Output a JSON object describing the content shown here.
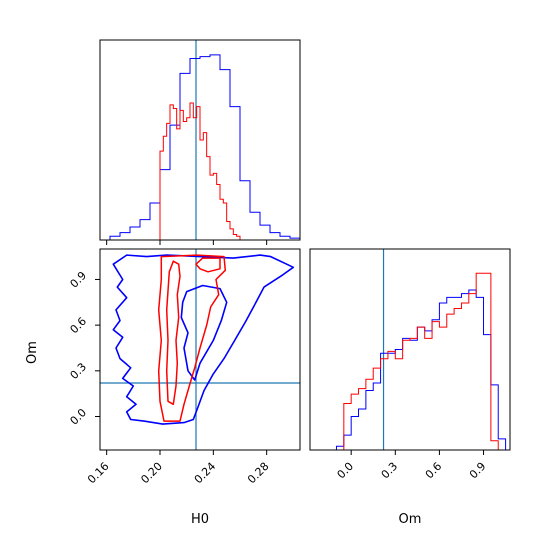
{
  "chart_data": {
    "type": "corner",
    "title": "",
    "parameters": [
      "H0",
      "Om"
    ],
    "truths": {
      "H0": 0.227,
      "Om": 0.22
    },
    "colors": {
      "blue": "#0000ff",
      "red": "#ff0000",
      "truth": "#1f77b4"
    },
    "panels": [
      {
        "id": "hist-H0",
        "type": "histogram",
        "xlim": [
          0.155,
          0.305
        ],
        "xticks": [
          0.16,
          0.2,
          0.24,
          0.28
        ],
        "yticks_shown": false,
        "series": [
          {
            "color": "blue",
            "bins": [
              0.155,
              0.1625,
              0.17,
              0.1775,
              0.185,
              0.1925,
              0.2,
              0.2075,
              0.215,
              0.2225,
              0.23,
              0.2375,
              0.245,
              0.2525,
              0.26,
              0.2675,
              0.275,
              0.2825,
              0.29,
              0.2975,
              0.305
            ],
            "counts": [
              0.0,
              0.02,
              0.04,
              0.07,
              0.11,
              0.2,
              0.38,
              0.62,
              0.9,
              0.98,
              0.99,
              1.0,
              0.92,
              0.72,
              0.32,
              0.15,
              0.08,
              0.04,
              0.02,
              0.01
            ]
          },
          {
            "color": "red",
            "bins": [
              0.2,
              0.2025,
              0.205,
              0.2075,
              0.21,
              0.2125,
              0.215,
              0.2175,
              0.22,
              0.2225,
              0.225,
              0.2275,
              0.23,
              0.2325,
              0.235,
              0.2375,
              0.24,
              0.2425,
              0.245,
              0.2475,
              0.25,
              0.2525,
              0.255,
              0.2575,
              0.26,
              0.2625
            ],
            "counts": [
              0.48,
              0.56,
              0.63,
              0.73,
              0.71,
              0.6,
              0.7,
              0.64,
              0.66,
              0.74,
              0.66,
              0.72,
              0.54,
              0.58,
              0.45,
              0.35,
              0.36,
              0.3,
              0.22,
              0.2,
              0.1,
              0.06,
              0.03,
              0.02,
              0.0
            ]
          }
        ]
      },
      {
        "id": "scatter-H0-Om",
        "type": "contour",
        "xlabel": "H0",
        "ylabel": "Om",
        "xlim": [
          0.155,
          0.305
        ],
        "ylim": [
          -0.22,
          1.1
        ],
        "xticks": [
          0.16,
          0.2,
          0.24,
          0.28
        ],
        "yticks": [
          0.0,
          0.3,
          0.6,
          0.9
        ],
        "contours": [
          {
            "color": "blue",
            "points": [
              [
                0.172,
                0.9
              ],
              [
                0.165,
                1.0
              ],
              [
                0.175,
                1.06
              ],
              [
                0.19,
                1.05
              ],
              [
                0.205,
                1.06
              ],
              [
                0.23,
                1.05
              ],
              [
                0.255,
                1.04
              ],
              [
                0.275,
                1.06
              ],
              [
                0.283,
                1.05
              ],
              [
                0.295,
                1.0
              ],
              [
                0.3,
                0.98
              ],
              [
                0.292,
                0.93
              ],
              [
                0.278,
                0.85
              ],
              [
                0.272,
                0.75
              ],
              [
                0.264,
                0.62
              ],
              [
                0.256,
                0.5
              ],
              [
                0.248,
                0.38
              ],
              [
                0.24,
                0.28
              ],
              [
                0.233,
                0.17
              ],
              [
                0.228,
                0.05
              ],
              [
                0.225,
                -0.02
              ],
              [
                0.218,
                -0.04
              ],
              [
                0.202,
                -0.05
              ],
              [
                0.188,
                -0.03
              ],
              [
                0.178,
                -0.02
              ],
              [
                0.175,
                0.03
              ],
              [
                0.182,
                0.08
              ],
              [
                0.175,
                0.13
              ],
              [
                0.18,
                0.2
              ],
              [
                0.172,
                0.25
              ],
              [
                0.178,
                0.32
              ],
              [
                0.17,
                0.38
              ],
              [
                0.167,
                0.45
              ],
              [
                0.172,
                0.52
              ],
              [
                0.165,
                0.57
              ],
              [
                0.17,
                0.63
              ],
              [
                0.167,
                0.7
              ],
              [
                0.175,
                0.78
              ],
              [
                0.168,
                0.85
              ],
              [
                0.172,
                0.9
              ]
            ]
          },
          {
            "color": "blue",
            "points": [
              [
                0.217,
                0.75
              ],
              [
                0.22,
                0.82
              ],
              [
                0.232,
                0.86
              ],
              [
                0.245,
                0.84
              ],
              [
                0.25,
                0.75
              ],
              [
                0.246,
                0.63
              ],
              [
                0.24,
                0.5
              ],
              [
                0.23,
                0.35
              ],
              [
                0.226,
                0.24
              ],
              [
                0.221,
                0.3
              ],
              [
                0.218,
                0.45
              ],
              [
                0.221,
                0.55
              ],
              [
                0.216,
                0.65
              ],
              [
                0.217,
                0.75
              ]
            ]
          },
          {
            "color": "red",
            "points": [
              [
                0.201,
                1.05
              ],
              [
                0.228,
                1.06
              ],
              [
                0.248,
                1.05
              ],
              [
                0.249,
                0.96
              ],
              [
                0.242,
                0.9
              ],
              [
                0.244,
                0.8
              ],
              [
                0.238,
                0.72
              ],
              [
                0.235,
                0.6
              ],
              [
                0.23,
                0.45
              ],
              [
                0.226,
                0.32
              ],
              [
                0.222,
                0.2
              ],
              [
                0.218,
                0.08
              ],
              [
                0.215,
                -0.03
              ],
              [
                0.203,
                -0.03
              ],
              [
                0.2,
                0.1
              ],
              [
                0.199,
                0.3
              ],
              [
                0.201,
                0.5
              ],
              [
                0.199,
                0.7
              ],
              [
                0.201,
                0.9
              ],
              [
                0.201,
                1.05
              ]
            ]
          },
          {
            "color": "red",
            "points": [
              [
                0.207,
                0.95
              ],
              [
                0.21,
                1.02
              ],
              [
                0.214,
                1.0
              ],
              [
                0.215,
                0.92
              ],
              [
                0.213,
                0.8
              ],
              [
                0.214,
                0.65
              ],
              [
                0.212,
                0.5
              ],
              [
                0.213,
                0.35
              ],
              [
                0.212,
                0.2
              ],
              [
                0.21,
                0.08
              ],
              [
                0.206,
                0.1
              ],
              [
                0.205,
                0.3
              ],
              [
                0.206,
                0.5
              ],
              [
                0.205,
                0.7
              ],
              [
                0.207,
                0.95
              ]
            ]
          },
          {
            "color": "red",
            "points": [
              [
                0.227,
                1.0
              ],
              [
                0.232,
                1.04
              ],
              [
                0.245,
                1.04
              ],
              [
                0.245,
                0.97
              ],
              [
                0.236,
                0.95
              ],
              [
                0.23,
                0.97
              ],
              [
                0.227,
                1.0
              ]
            ]
          }
        ]
      },
      {
        "id": "hist-Om",
        "type": "histogram",
        "xlabel": "Om",
        "xlim": [
          -0.28,
          1.08
        ],
        "xticks": [
          0.0,
          0.3,
          0.6,
          0.9
        ],
        "yticks_shown": false,
        "series": [
          {
            "color": "blue",
            "bins": [
              -0.1,
              -0.05,
              0.0,
              0.05,
              0.1,
              0.15,
              0.2,
              0.25,
              0.3,
              0.35,
              0.4,
              0.45,
              0.5,
              0.55,
              0.6,
              0.65,
              0.7,
              0.75,
              0.8,
              0.85,
              0.9,
              0.95,
              1.0,
              1.05
            ],
            "counts": [
              0.02,
              0.08,
              0.18,
              0.22,
              0.32,
              0.36,
              0.52,
              0.52,
              0.54,
              0.6,
              0.59,
              0.66,
              0.64,
              0.7,
              0.79,
              0.82,
              0.82,
              0.84,
              0.86,
              0.82,
              0.62,
              0.35,
              0.06
            ]
          },
          {
            "color": "red",
            "bins": [
              -0.05,
              0.0,
              0.05,
              0.1,
              0.15,
              0.2,
              0.25,
              0.3,
              0.35,
              0.4,
              0.45,
              0.5,
              0.55,
              0.6,
              0.65,
              0.7,
              0.75,
              0.8,
              0.85,
              0.9,
              0.95,
              1.0
            ],
            "counts": [
              0.25,
              0.3,
              0.33,
              0.38,
              0.44,
              0.49,
              0.53,
              0.49,
              0.59,
              0.6,
              0.66,
              0.6,
              0.69,
              0.66,
              0.73,
              0.76,
              0.79,
              0.84,
              0.95,
              0.95,
              0.05
            ]
          }
        ]
      }
    ]
  }
}
